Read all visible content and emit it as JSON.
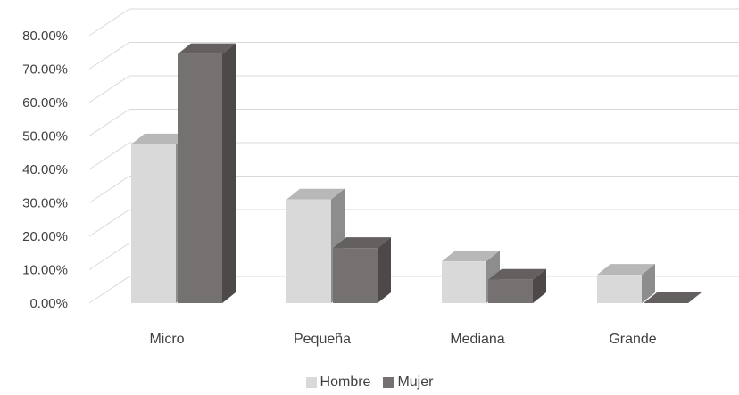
{
  "chart_data": {
    "type": "bar",
    "style": "3d-clustered-column",
    "categories": [
      "Micro",
      "Pequeña",
      "Mediana",
      "Grande"
    ],
    "series": [
      {
        "name": "Hombre",
        "values": [
          0.475,
          0.31,
          0.125,
          0.085
        ],
        "color": "#d9d9d9"
      },
      {
        "name": "Mujer",
        "values": [
          0.745,
          0.165,
          0.07,
          0.0
        ],
        "color": "#767171"
      }
    ],
    "y_tick_labels": [
      "0.00%",
      "10.00%",
      "20.00%",
      "30.00%",
      "40.00%",
      "50.00%",
      "60.00%",
      "70.00%",
      "80.00%"
    ],
    "ylim": [
      0,
      0.8
    ],
    "grid": true,
    "legend_position": "bottom"
  }
}
